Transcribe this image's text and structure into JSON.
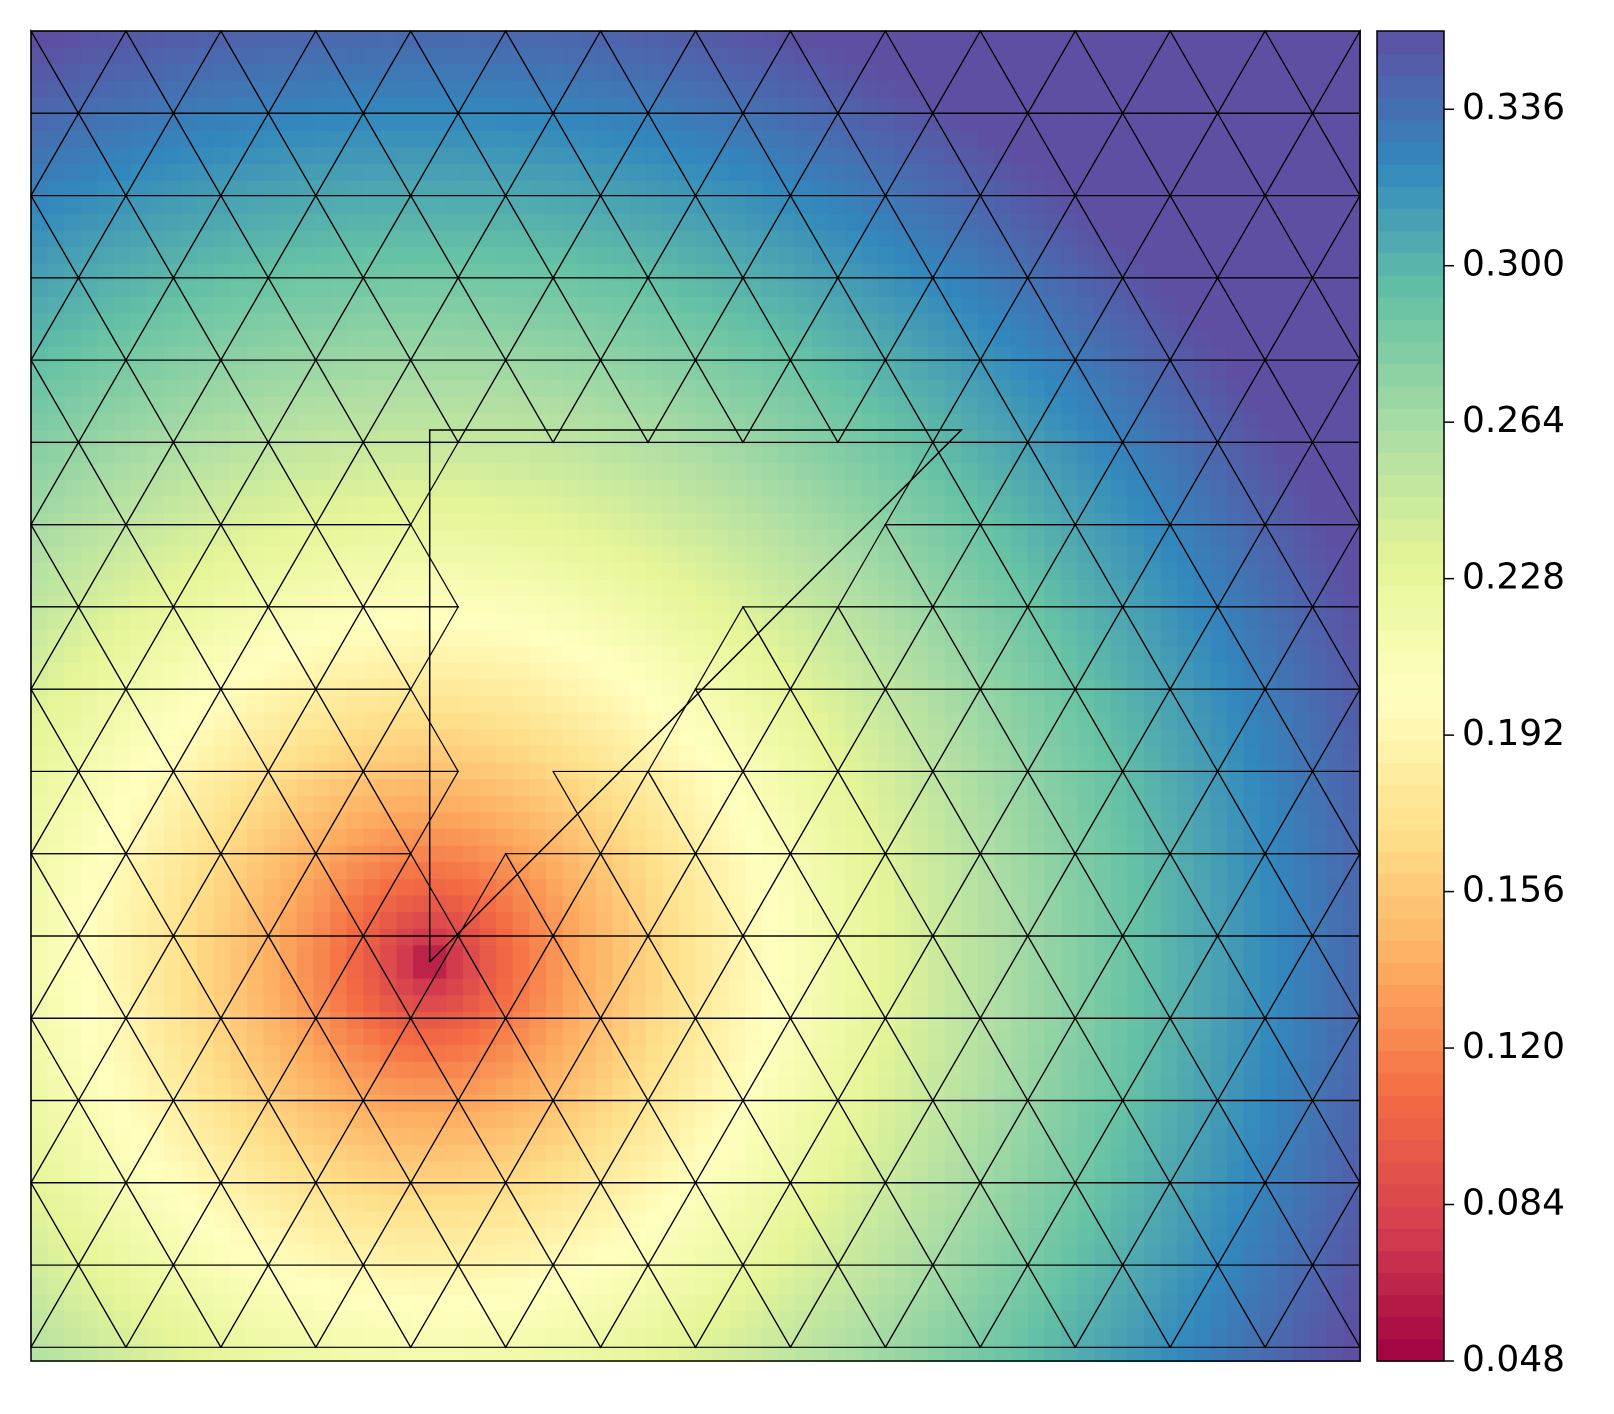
{
  "chart_data": {
    "type": "tricontour",
    "colormap": [
      "#9e0142",
      "#d53e4f",
      "#f46d43",
      "#fdae61",
      "#fee08b",
      "#ffffbf",
      "#e6f598",
      "#abdda4",
      "#66c2a5",
      "#3288bd",
      "#5e4fa2"
    ],
    "clim": [
      0.048,
      0.354
    ],
    "cticks": [
      0.048,
      0.084,
      {
        "value": 0.12,
        "label": "0.120"
      },
      0.156,
      0.192,
      0.228,
      0.264,
      {
        "value": 0.3,
        "label": "0.300"
      },
      0.336
    ]
  }
}
